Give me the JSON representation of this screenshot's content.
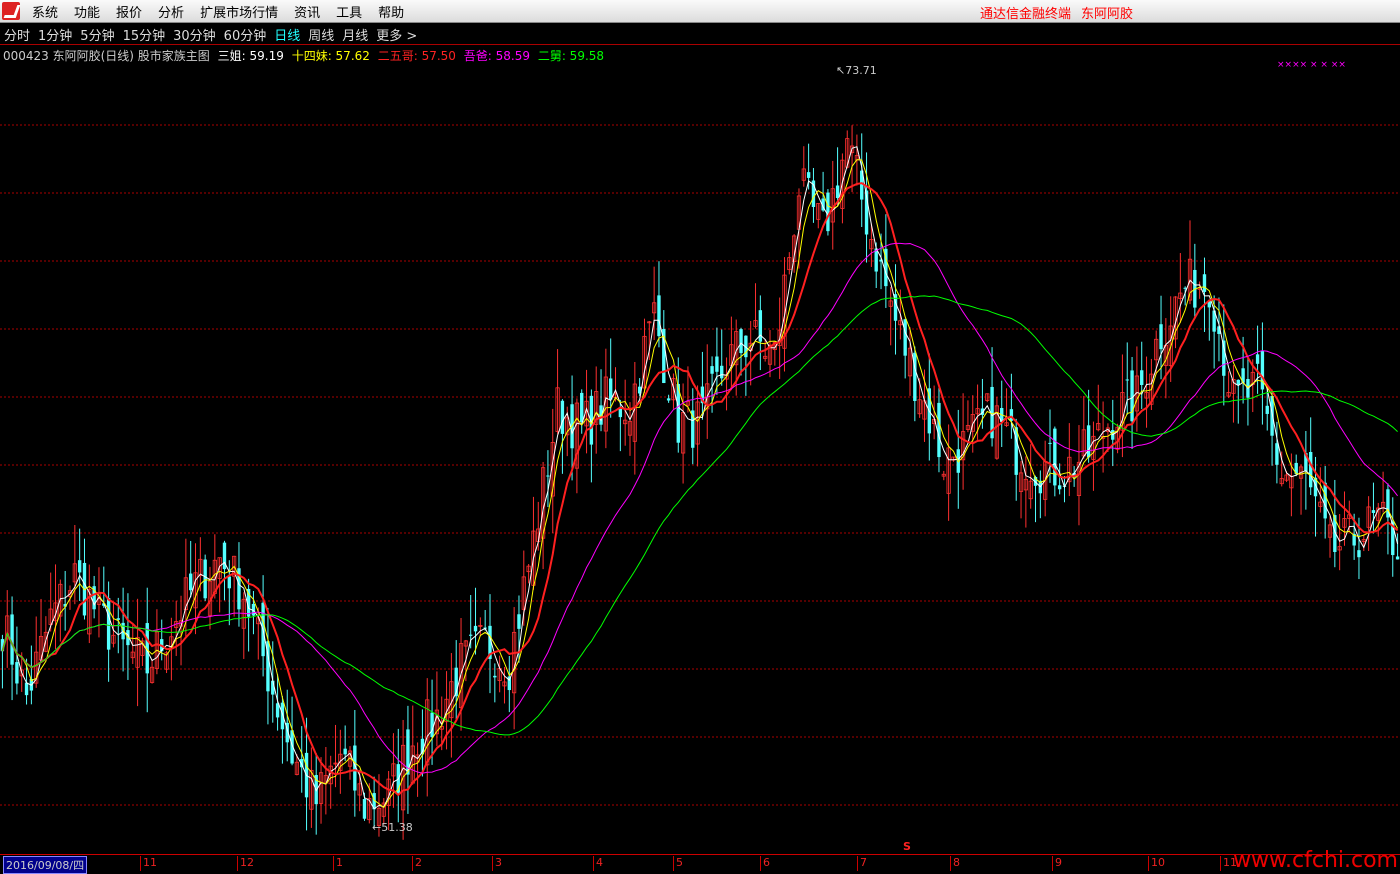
{
  "menu": {
    "items": [
      "系统",
      "功能",
      "报价",
      "分析",
      "扩展市场行情",
      "资讯",
      "工具",
      "帮助"
    ],
    "title_app": "通达信金融终端",
    "title_stock": "东阿阿胶"
  },
  "periods": {
    "items": [
      "分时",
      "1分钟",
      "5分钟",
      "15分钟",
      "30分钟",
      "60分钟",
      "日线",
      "周线",
      "月线",
      "更多 >"
    ],
    "active": "日线"
  },
  "legend": {
    "code_name": "000423 东阿阿胶(日线) 股市家族主图",
    "lines": [
      {
        "label": "三姐: 59.19",
        "color": "#ffffff"
      },
      {
        "label": "十四妹: 57.62",
        "color": "#ffff00"
      },
      {
        "label": "二五哥: 57.50",
        "color": "#ff2020"
      },
      {
        "label": "吾爸: 58.59",
        "color": "#ff00ff"
      },
      {
        "label": "二舅: 59.58",
        "color": "#00ff00"
      }
    ]
  },
  "signal_marks": "××××  ×      ×      ××",
  "chart_data": {
    "type": "candlestick",
    "high_label": "73.71",
    "low_label": "51.38",
    "price_range": [
      50.5,
      75.2
    ],
    "up_color": "#ff3030",
    "down_color": "#54ffff",
    "close_trend": [
      58.05,
      55.9,
      58.2,
      59.5,
      58.3,
      57.3,
      56.8,
      58.0,
      59.2,
      60.0,
      59.0,
      56.6,
      54.2,
      52.8,
      54.2,
      52.7,
      53.0,
      54.6,
      55.3,
      56.8,
      57.5,
      56.9,
      60.5,
      64.4,
      63.8,
      64.6,
      64.5,
      67.2,
      64.0,
      64.0,
      65.8,
      66.5,
      66.0,
      71.0,
      69.6,
      72.3,
      69.5,
      67.0,
      65.0,
      62.9,
      63.4,
      64.3,
      63.2,
      62.7,
      62.6,
      63.1,
      64.2,
      64.7,
      66.7,
      68.0,
      68.2,
      64.6,
      65.0,
      62.5,
      62.3,
      60.2,
      60.6,
      61.1,
      60.2
    ],
    "grid": "dashed-red"
  },
  "axis": {
    "cursor_date": "2016/09/08/四",
    "months": [
      "11",
      "12",
      "1",
      "2",
      "3",
      "4",
      "5",
      "6",
      "7",
      "8",
      "9",
      "10",
      "11"
    ],
    "marker": "S"
  },
  "watermark": "www.cfchi.com"
}
